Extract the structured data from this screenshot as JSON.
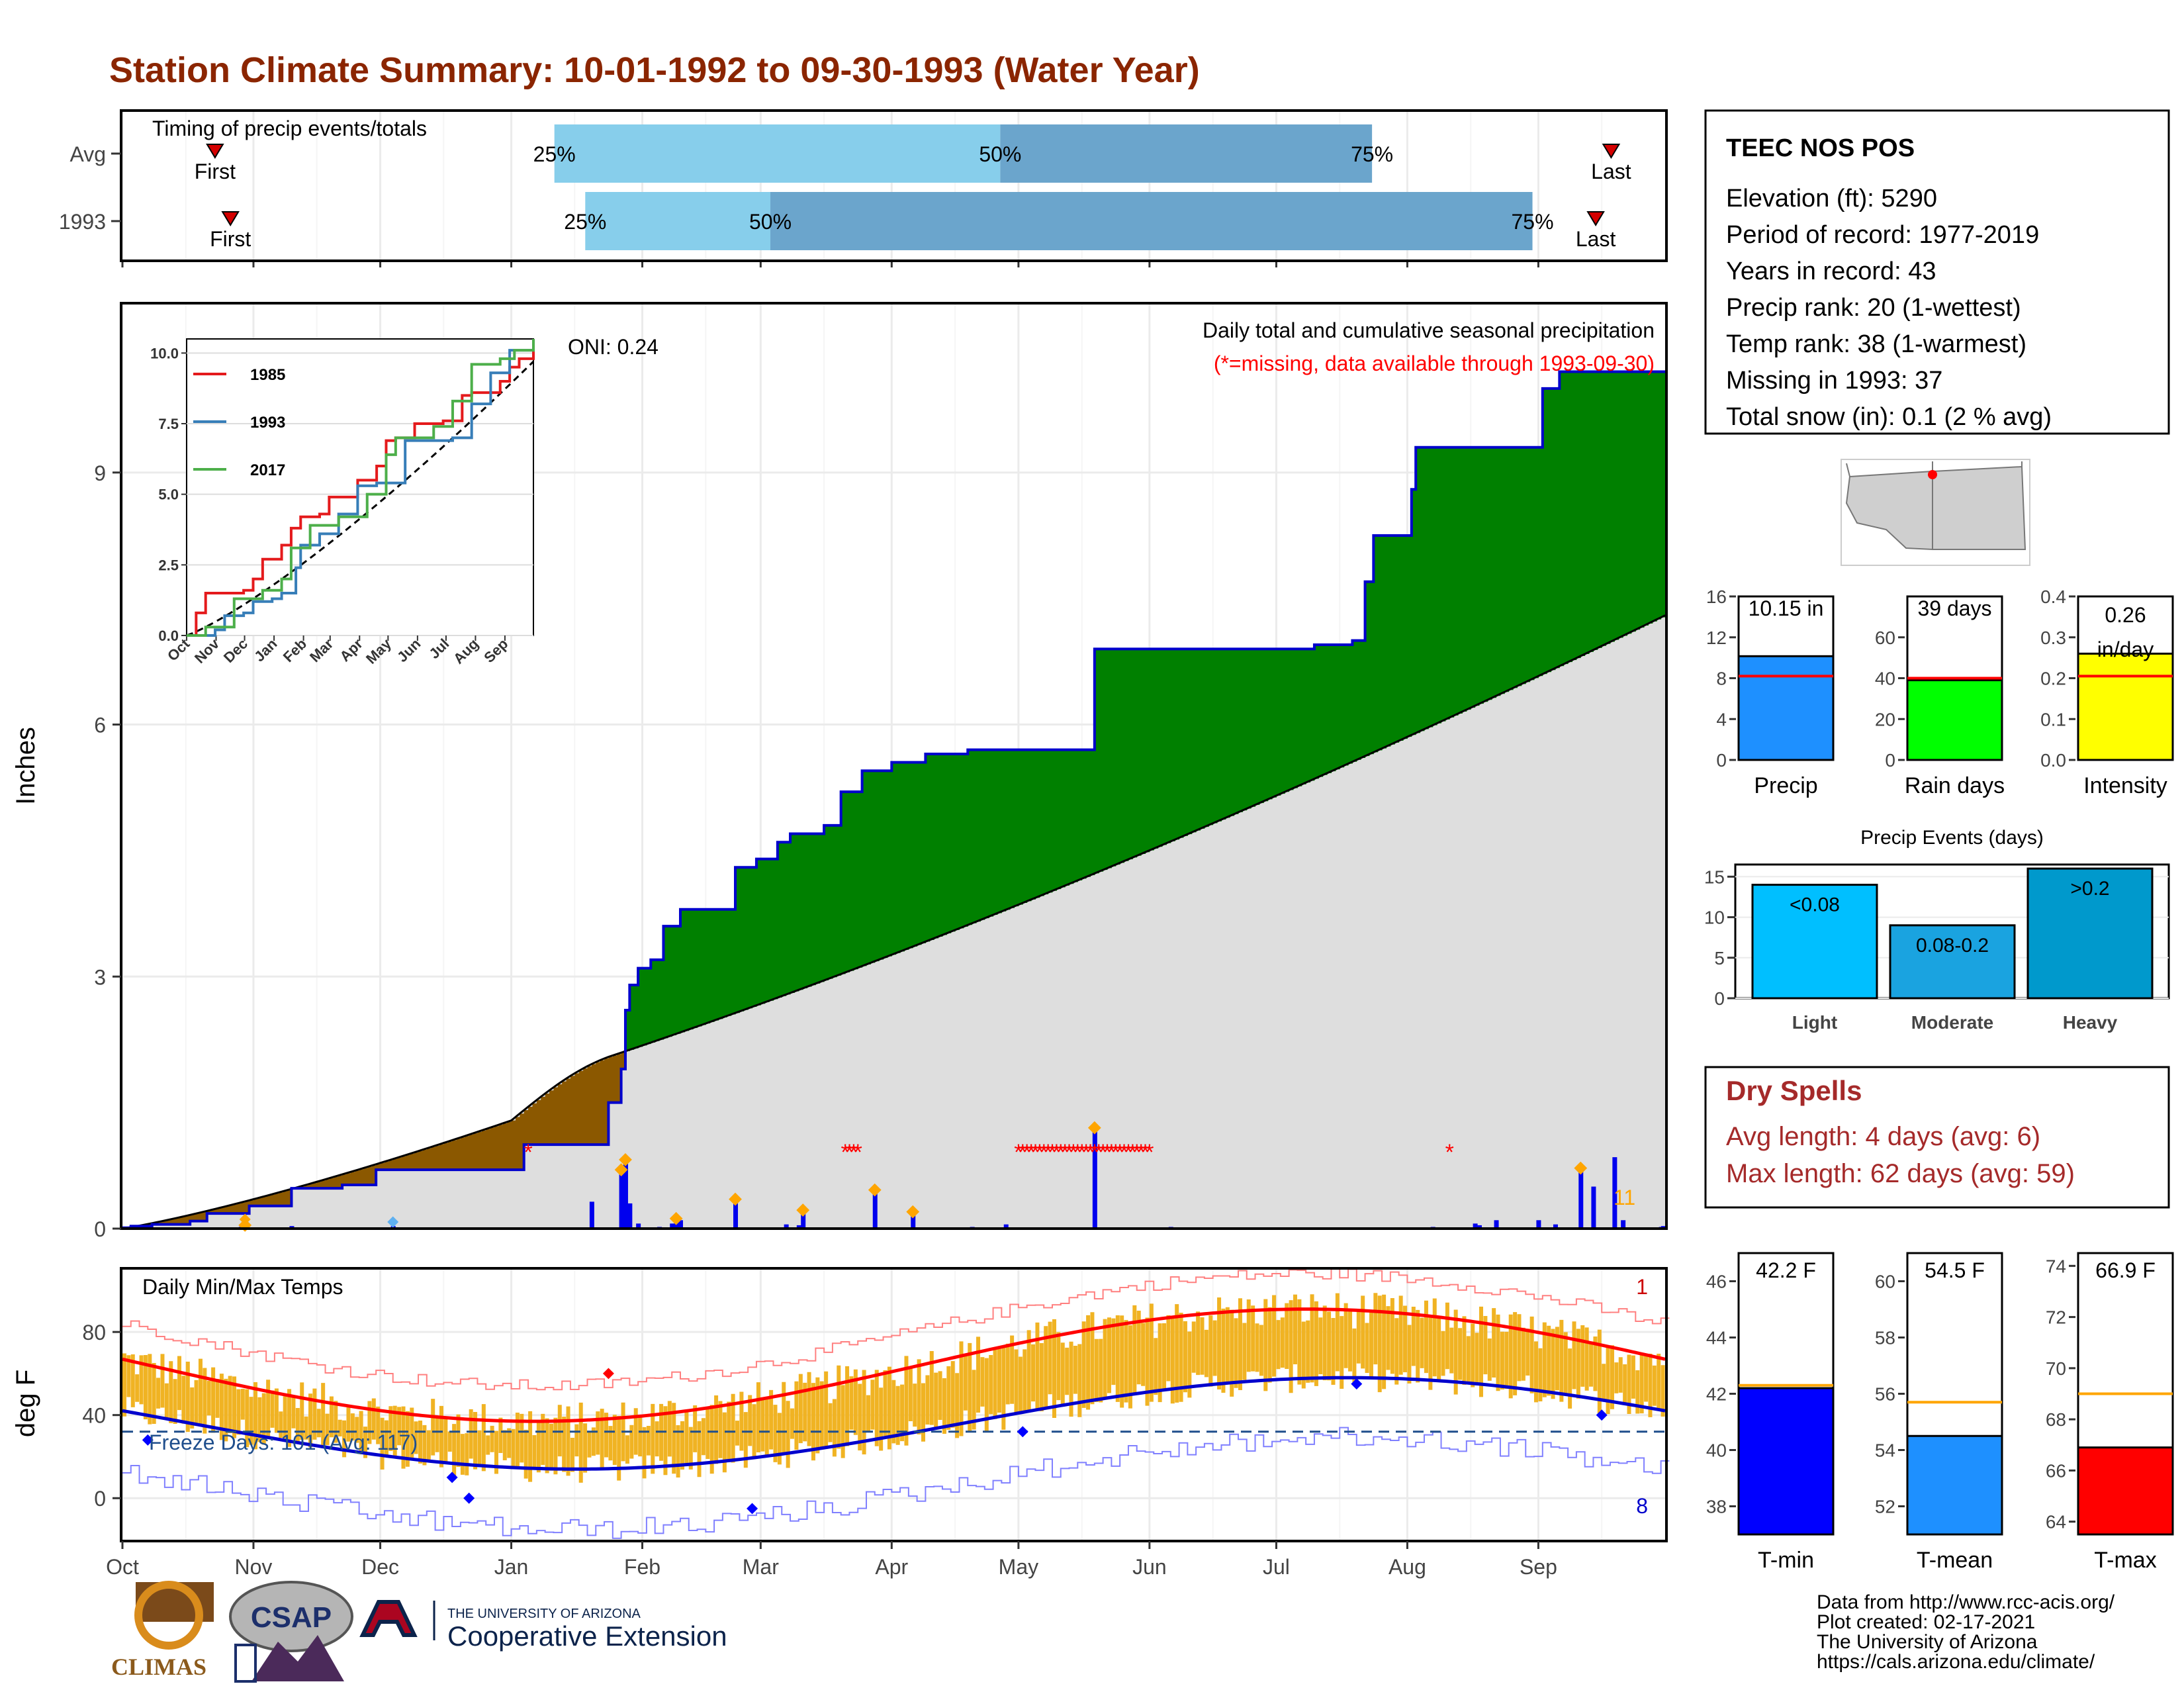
{
  "title": "Station Climate Summary: 10-01-1992 to 09-30-1993 (Water Year)",
  "timing": {
    "title": "Timing of precip events/totals",
    "rows": [
      {
        "label": "Avg",
        "first_pct": 0.06,
        "last_pct": 0.965,
        "q25": 0.28,
        "q50": 0.569,
        "q75": 0.81,
        "labels": {
          "first": "First",
          "last": "Last",
          "p25": "25%",
          "p50": "50%",
          "p75": "75%"
        }
      },
      {
        "label": "1993",
        "first_pct": 0.07,
        "last_pct": 0.955,
        "q25": 0.3,
        "q50": 0.42,
        "q75": 0.914,
        "labels": {
          "first": "First",
          "last": "Last",
          "p25": "25%",
          "p50": "50%",
          "p75": "75%"
        }
      }
    ],
    "colors": {
      "light": "#87CEEB",
      "dark": "#6BA5CC",
      "marker": "#D40000"
    }
  },
  "station": {
    "name": "TEEC NOS POS",
    "lines": [
      "Elevation (ft): 5290",
      "Period of record: 1977-2019",
      "Years in record: 43",
      "Precip rank: 20 (1-wettest)",
      "Temp rank: 38 (1-warmest)",
      "Missing in 1993: 37",
      "Total snow (in): 0.1 (2 % avg)"
    ]
  },
  "precip_panel": {
    "ylabel": "Inches",
    "subtitle": "Daily total and cumulative seasonal precipitation",
    "missing_note": "(*=missing, data available through 1993-09-30)",
    "oni": "ONI: 0.24",
    "yticks": [
      0,
      3,
      6,
      9
    ],
    "ylim": [
      0,
      11
    ],
    "count_label": "11",
    "colors": {
      "above": "#008000",
      "below": "#8B5800",
      "normal": "#DEDEDE",
      "line": "#0000CC",
      "daily": "#0000EE",
      "marker": "#FFA500",
      "missing": "#FF0000"
    }
  },
  "inset": {
    "yticks": [
      "0.0",
      "2.5",
      "5.0",
      "7.5",
      "10.0"
    ],
    "xticks": [
      "Oct",
      "Nov",
      "Dec",
      "Jan",
      "Feb",
      "Mar",
      "Apr",
      "May",
      "Jun",
      "Jul",
      "Aug",
      "Sep"
    ],
    "legend": [
      {
        "name": "1985",
        "color": "#E41A1C"
      },
      {
        "name": "1993",
        "color": "#377EB8"
      },
      {
        "name": "2017",
        "color": "#4DAF4A"
      }
    ]
  },
  "temp_panel": {
    "title": "Daily Min/Max Temps",
    "ylabel": "deg F",
    "freeze": "Freeze Days: 101 (Avg: 117)",
    "yticks": [
      0,
      40,
      80
    ],
    "ylim": [
      -20,
      110
    ],
    "count_high": "1",
    "count_low": "8",
    "colors": {
      "bar": "#F0B323",
      "max": "#FF0000",
      "min": "#0000CC",
      "freeze": "#1F4E8C"
    }
  },
  "months": [
    "Oct",
    "Nov",
    "Dec",
    "Jan",
    "Feb",
    "Mar",
    "Apr",
    "May",
    "Jun",
    "Jul",
    "Aug",
    "Sep"
  ],
  "chart_data": [
    {
      "type": "bar",
      "title": "",
      "categories": [
        "Precip",
        "Rain days",
        "Intensity"
      ],
      "values": [
        10.15,
        39,
        0.26
      ],
      "labels": [
        "10.15 in",
        "39 days",
        "0.26 in/day"
      ],
      "averages": [
        8.2,
        40,
        0.205
      ],
      "ylims": [
        [
          0,
          16
        ],
        [
          0,
          80
        ],
        [
          0,
          0.4
        ]
      ],
      "yticks": [
        [
          "0",
          "4",
          "8",
          "12",
          "16"
        ],
        [
          "0",
          "20",
          "40",
          "60"
        ],
        [
          "0.0",
          "0.1",
          "0.2",
          "0.3",
          "0.4"
        ]
      ],
      "colors": [
        "#1E90FF",
        "#00FF00",
        "#FFFF00"
      ]
    },
    {
      "type": "bar",
      "title": "Precip Events (days)",
      "categories": [
        "Light",
        "Moderate",
        "Heavy"
      ],
      "values": [
        14,
        9,
        16
      ],
      "labels": [
        "<0.08",
        "0.08-0.2",
        ">0.2"
      ],
      "ylim": [
        0,
        16.5
      ],
      "yticks": [
        "0",
        "5",
        "10",
        "15"
      ],
      "colors": [
        "#00BFFF",
        "#1AA3E0",
        "#0099CC"
      ]
    },
    {
      "type": "bar",
      "title": "",
      "categories": [
        "T-min",
        "T-mean",
        "T-max"
      ],
      "values": [
        42.2,
        54.5,
        66.9
      ],
      "labels": [
        "42.2 F",
        "54.5 F",
        "66.9 F"
      ],
      "averages": [
        42.3,
        55.7,
        69.0
      ],
      "ylims": [
        [
          37,
          47
        ],
        [
          51,
          61
        ],
        [
          63.5,
          74.5
        ]
      ],
      "yticks": [
        [
          "38",
          "40",
          "42",
          "44",
          "46"
        ],
        [
          "52",
          "54",
          "56",
          "58",
          "60"
        ],
        [
          "64",
          "66",
          "68",
          "70",
          "72",
          "74"
        ]
      ],
      "colors": [
        "#0000FF",
        "#1E90FF",
        "#FF0000"
      ]
    }
  ],
  "dry_spells": {
    "title": "Dry Spells",
    "lines": [
      "Avg length: 4 days (avg: 6)",
      "Max length: 62 days (avg: 59)"
    ]
  },
  "footer": {
    "lines": [
      "Data from http://www.rcc-acis.org/",
      "Plot created: 02-17-2021",
      "The University of Arizona",
      "https://cals.arizona.edu/climate/"
    ],
    "logo_climas": "CLIMAS",
    "logo_csap": "CSAP",
    "ua_small": "THE UNIVERSITY OF ARIZONA",
    "ua_big": "Cooperative Extension"
  }
}
